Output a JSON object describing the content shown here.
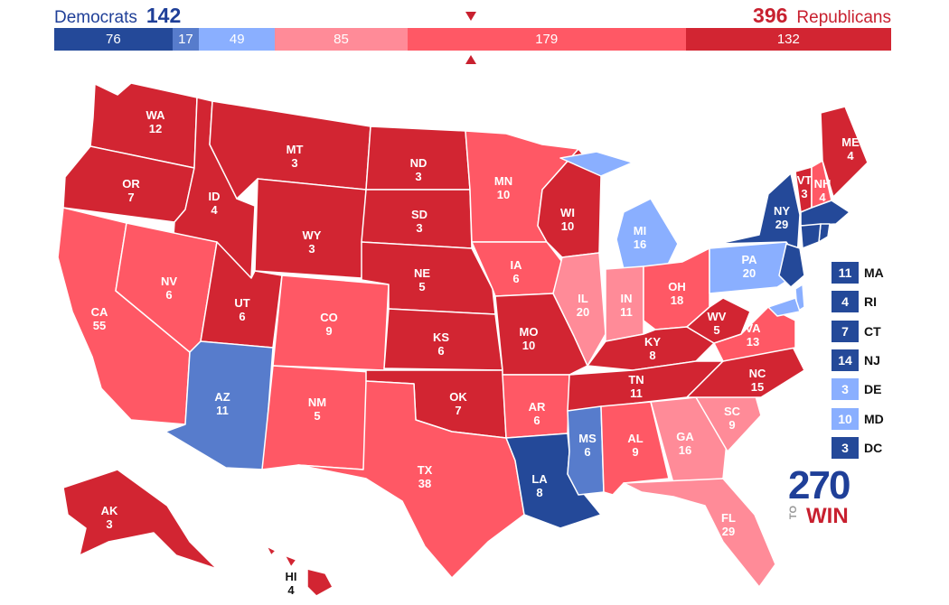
{
  "header": {
    "dem_label": "Democrats",
    "dem_total": "142",
    "rep_label": "Republicans",
    "rep_total": "396"
  },
  "bar": [
    {
      "value": "76",
      "color": "#244999",
      "units": 76
    },
    {
      "value": "17",
      "color": "#577ccc",
      "units": 17
    },
    {
      "value": "49",
      "color": "#8aafff",
      "units": 49
    },
    {
      "value": "85",
      "color": "#ff8b98",
      "units": 85
    },
    {
      "value": "179",
      "color": "#ff5865",
      "units": 179
    },
    {
      "value": "132",
      "color": "#d22532",
      "units": 132
    }
  ],
  "colors": {
    "safe_dem": "#244999",
    "likely_dem": "#577ccc",
    "lean_dem": "#8aafff",
    "lean_rep": "#ff8b98",
    "likely_rep": "#ff5865",
    "safe_rep": "#d22532"
  },
  "states": [
    {
      "abbr": "WA",
      "ev": "12",
      "rating": "safe_rep"
    },
    {
      "abbr": "OR",
      "ev": "7",
      "rating": "safe_rep"
    },
    {
      "abbr": "CA",
      "ev": "55",
      "rating": "likely_rep"
    },
    {
      "abbr": "ID",
      "ev": "4",
      "rating": "safe_rep"
    },
    {
      "abbr": "NV",
      "ev": "6",
      "rating": "likely_rep"
    },
    {
      "abbr": "MT",
      "ev": "3",
      "rating": "safe_rep"
    },
    {
      "abbr": "WY",
      "ev": "3",
      "rating": "safe_rep"
    },
    {
      "abbr": "UT",
      "ev": "6",
      "rating": "safe_rep"
    },
    {
      "abbr": "AZ",
      "ev": "11",
      "rating": "likely_dem"
    },
    {
      "abbr": "CO",
      "ev": "9",
      "rating": "likely_rep"
    },
    {
      "abbr": "NM",
      "ev": "5",
      "rating": "likely_rep"
    },
    {
      "abbr": "ND",
      "ev": "3",
      "rating": "safe_rep"
    },
    {
      "abbr": "SD",
      "ev": "3",
      "rating": "safe_rep"
    },
    {
      "abbr": "NE",
      "ev": "5",
      "rating": "safe_rep"
    },
    {
      "abbr": "KS",
      "ev": "6",
      "rating": "safe_rep"
    },
    {
      "abbr": "OK",
      "ev": "7",
      "rating": "safe_rep"
    },
    {
      "abbr": "TX",
      "ev": "38",
      "rating": "likely_rep"
    },
    {
      "abbr": "MN",
      "ev": "10",
      "rating": "likely_rep"
    },
    {
      "abbr": "IA",
      "ev": "6",
      "rating": "likely_rep"
    },
    {
      "abbr": "MO",
      "ev": "10",
      "rating": "safe_rep"
    },
    {
      "abbr": "AR",
      "ev": "6",
      "rating": "likely_rep"
    },
    {
      "abbr": "LA",
      "ev": "8",
      "rating": "safe_dem"
    },
    {
      "abbr": "WI",
      "ev": "10",
      "rating": "safe_rep"
    },
    {
      "abbr": "IL",
      "ev": "20",
      "rating": "lean_rep"
    },
    {
      "abbr": "MI",
      "ev": "16",
      "rating": "lean_dem"
    },
    {
      "abbr": "IN",
      "ev": "11",
      "rating": "lean_rep"
    },
    {
      "abbr": "OH",
      "ev": "18",
      "rating": "likely_rep"
    },
    {
      "abbr": "KY",
      "ev": "8",
      "rating": "safe_rep"
    },
    {
      "abbr": "TN",
      "ev": "11",
      "rating": "safe_rep"
    },
    {
      "abbr": "MS",
      "ev": "6",
      "rating": "likely_dem"
    },
    {
      "abbr": "AL",
      "ev": "9",
      "rating": "likely_rep"
    },
    {
      "abbr": "GA",
      "ev": "16",
      "rating": "lean_rep"
    },
    {
      "abbr": "FL",
      "ev": "29",
      "rating": "lean_rep"
    },
    {
      "abbr": "SC",
      "ev": "9",
      "rating": "lean_rep"
    },
    {
      "abbr": "NC",
      "ev": "15",
      "rating": "safe_rep"
    },
    {
      "abbr": "VA",
      "ev": "13",
      "rating": "likely_rep"
    },
    {
      "abbr": "WV",
      "ev": "5",
      "rating": "safe_rep"
    },
    {
      "abbr": "PA",
      "ev": "20",
      "rating": "lean_dem"
    },
    {
      "abbr": "NY",
      "ev": "29",
      "rating": "safe_dem"
    },
    {
      "abbr": "VT",
      "ev": "3",
      "rating": "safe_rep"
    },
    {
      "abbr": "NH",
      "ev": "4",
      "rating": "likely_rep"
    },
    {
      "abbr": "ME",
      "ev": "4",
      "rating": "safe_rep"
    },
    {
      "abbr": "AK",
      "ev": "3",
      "rating": "safe_rep"
    },
    {
      "abbr": "HI",
      "ev": "4",
      "rating": "safe_rep"
    }
  ],
  "small_states": [
    {
      "abbr": "MA",
      "ev": "11",
      "rating": "safe_dem"
    },
    {
      "abbr": "RI",
      "ev": "4",
      "rating": "safe_dem"
    },
    {
      "abbr": "CT",
      "ev": "7",
      "rating": "safe_dem"
    },
    {
      "abbr": "NJ",
      "ev": "14",
      "rating": "safe_dem"
    },
    {
      "abbr": "DE",
      "ev": "3",
      "rating": "lean_dem"
    },
    {
      "abbr": "MD",
      "ev": "10",
      "rating": "lean_dem"
    },
    {
      "abbr": "DC",
      "ev": "3",
      "rating": "safe_dem"
    }
  ],
  "logo": {
    "number": "270",
    "to": "TO",
    "win": "WIN"
  }
}
